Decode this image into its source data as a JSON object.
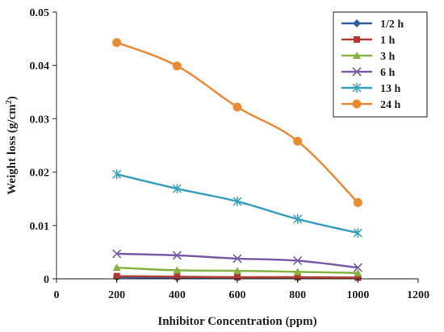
{
  "chart_data": {
    "type": "line",
    "x_label": "Inhibitor Concentration (ppm)",
    "y_label_main": "Weight loss (g/cm",
    "y_label_sup": "2",
    "y_label_end": ")",
    "xlim": [
      0,
      1200
    ],
    "ylim": [
      0,
      0.05
    ],
    "x_ticks": [
      0,
      200,
      400,
      600,
      800,
      1000,
      1200
    ],
    "x_tick_labels": [
      "0",
      "200",
      "400",
      "600",
      "800",
      "1000",
      "1200"
    ],
    "y_ticks": [
      0,
      0.01,
      0.02,
      0.03,
      0.04,
      0.05
    ],
    "y_tick_labels": [
      "0",
      "0.01",
      "0.02",
      "0.03",
      "0.04",
      "0.05"
    ],
    "grid": false,
    "legend_position": "top-right",
    "x": [
      200,
      400,
      600,
      800,
      1000
    ],
    "series": [
      {
        "name": "1/2 h",
        "color": "#2e5d9b",
        "marker": "diamond",
        "values": [
          0.0003,
          0.0002,
          0.0002,
          0.0002,
          0.0002
        ]
      },
      {
        "name": "1 h",
        "color": "#b03a2e",
        "marker": "square",
        "values": [
          0.0005,
          0.0004,
          0.0003,
          0.0003,
          0.0002
        ]
      },
      {
        "name": "3 h",
        "color": "#86b341",
        "marker": "triangle",
        "values": [
          0.0021,
          0.0016,
          0.0015,
          0.0013,
          0.0011
        ]
      },
      {
        "name": "6 h",
        "color": "#7a5ba6",
        "marker": "x",
        "values": [
          0.0047,
          0.0044,
          0.0038,
          0.0034,
          0.0021
        ]
      },
      {
        "name": "13 h",
        "color": "#3aa0bd",
        "marker": "star",
        "values": [
          0.0196,
          0.0169,
          0.0145,
          0.0112,
          0.0086
        ]
      },
      {
        "name": "24 h",
        "color": "#ea8a35",
        "marker": "circle",
        "values": [
          0.0443,
          0.0399,
          0.0322,
          0.0258,
          0.0143
        ]
      }
    ]
  }
}
